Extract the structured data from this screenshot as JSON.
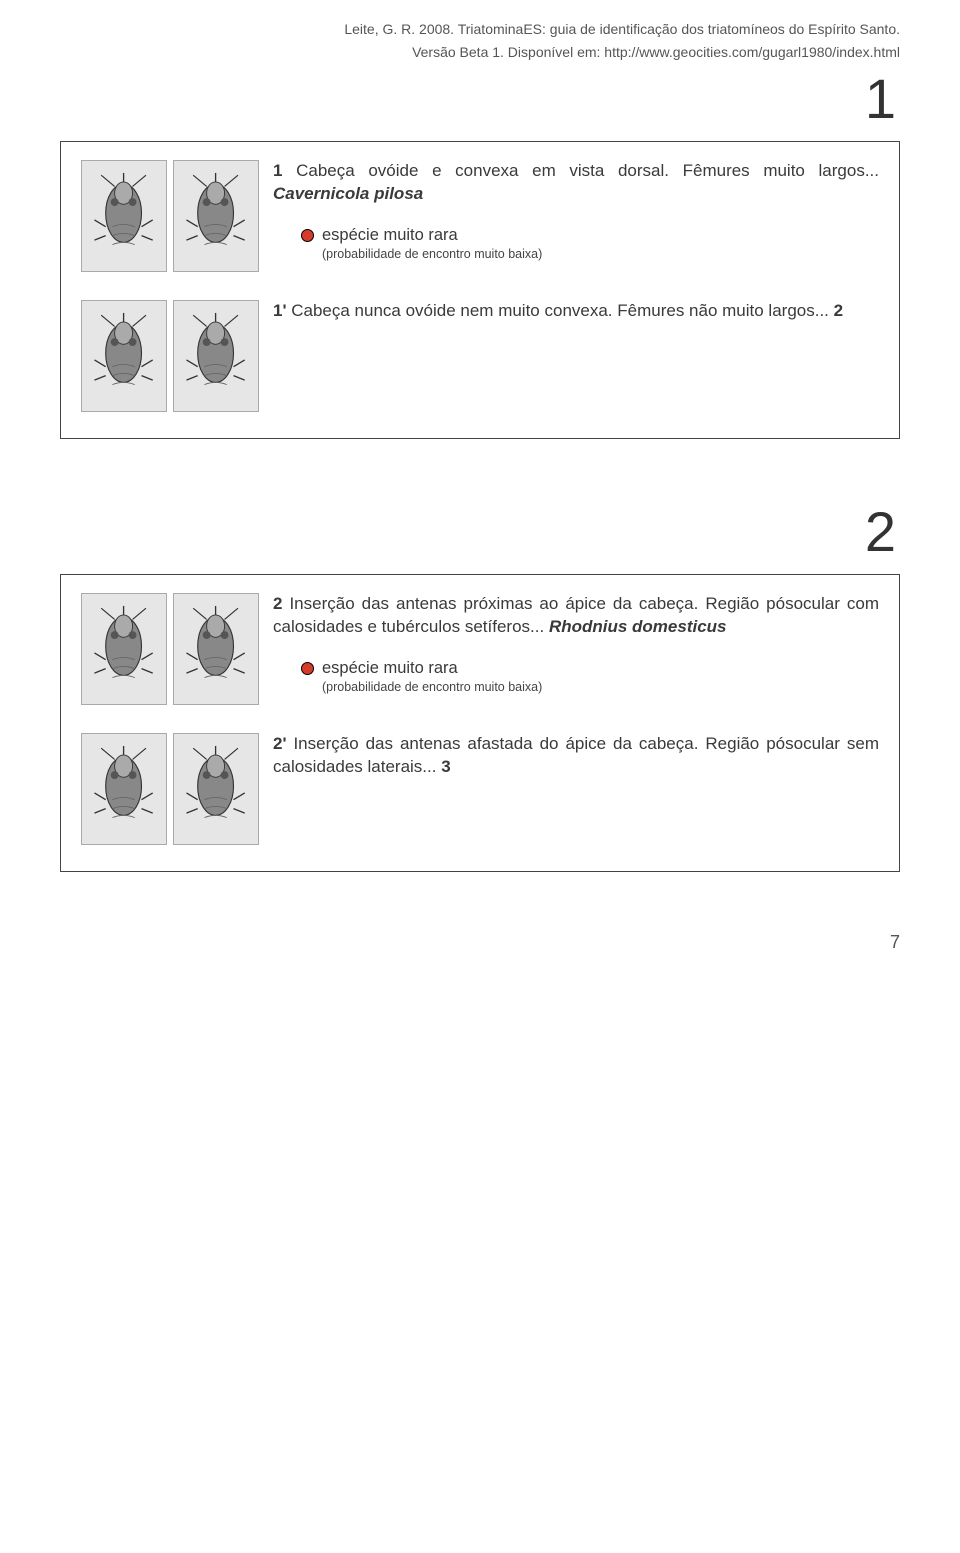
{
  "citation": {
    "line1": "Leite, G. R. 2008. TriatominaES: guia de identificação dos triatomíneos do Espírito Santo.",
    "line2": "Versão Beta 1. Disponível em: http://www.geocities.com/gugarl1980/index.html"
  },
  "sections": [
    {
      "big_number": "1",
      "entries": [
        {
          "lead": "1",
          "text_before": " Cabeça ovóide e convexa em vista dorsal. Fêmures muito largos... ",
          "species": "Cavernicola pilosa",
          "rarity": {
            "dot_color": "#d43b2a",
            "label": "espécie muito rara",
            "sub": "(probabilidade de encontro muito baixa)"
          }
        },
        {
          "lead": "1'",
          "text_before": " Cabeça nunca ovóide nem muito convexa. Fêmures não muito largos... ",
          "link": "2"
        }
      ]
    },
    {
      "big_number": "2",
      "entries": [
        {
          "lead": "2",
          "text_before": " Inserção das antenas próximas ao ápice da cabeça. Região pósocular com calosidades e tubérculos setíferos... ",
          "species": "Rhodnius domesticus",
          "rarity": {
            "dot_color": "#d43b2a",
            "label": "espécie muito rara",
            "sub": "(probabilidade de encontro muito baixa)"
          }
        },
        {
          "lead": "2'",
          "text_before": " Inserção das antenas afastada do ápice da cabeça. Região pósocular sem calosidades laterais... ",
          "link": "3"
        }
      ]
    }
  ],
  "page_number": "7"
}
